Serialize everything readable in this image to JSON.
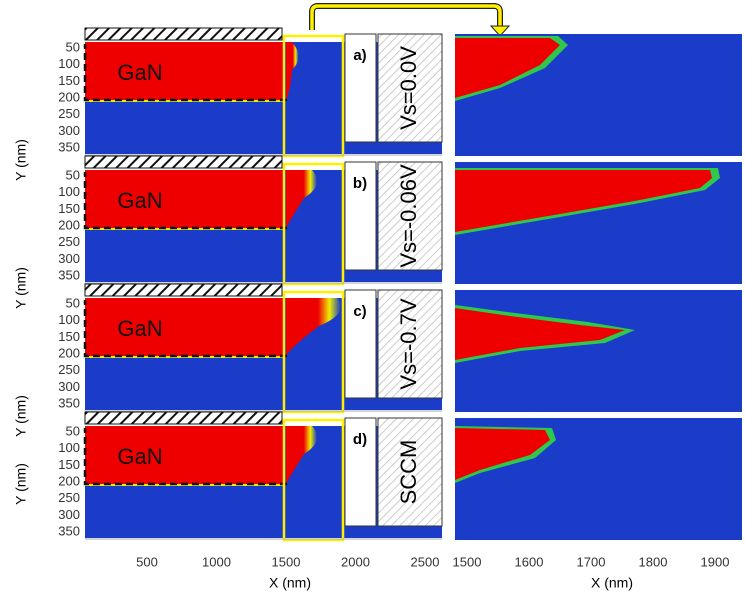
{
  "left_axis": {
    "y_label": "Y (nm)",
    "yticks": [
      50,
      100,
      150,
      200,
      250,
      300,
      350
    ],
    "x_label": "X (nm)",
    "xticks": [
      500,
      1000,
      1500,
      2000,
      2500
    ]
  },
  "right_axis": {
    "x_label": "X (nm)",
    "xticks": [
      1500,
      1600,
      1700,
      1800,
      1900
    ]
  },
  "panels": [
    {
      "material": "GaN",
      "label": "a)",
      "condition": "Vs=0.0V"
    },
    {
      "material": "GaN",
      "label": "b)",
      "condition": "Vs=-0.06V"
    },
    {
      "material": "GaN",
      "label": "c)",
      "condition": "Vs=-0.7V"
    },
    {
      "material": "GaN",
      "label": "d)",
      "condition": "SCCM"
    }
  ]
}
